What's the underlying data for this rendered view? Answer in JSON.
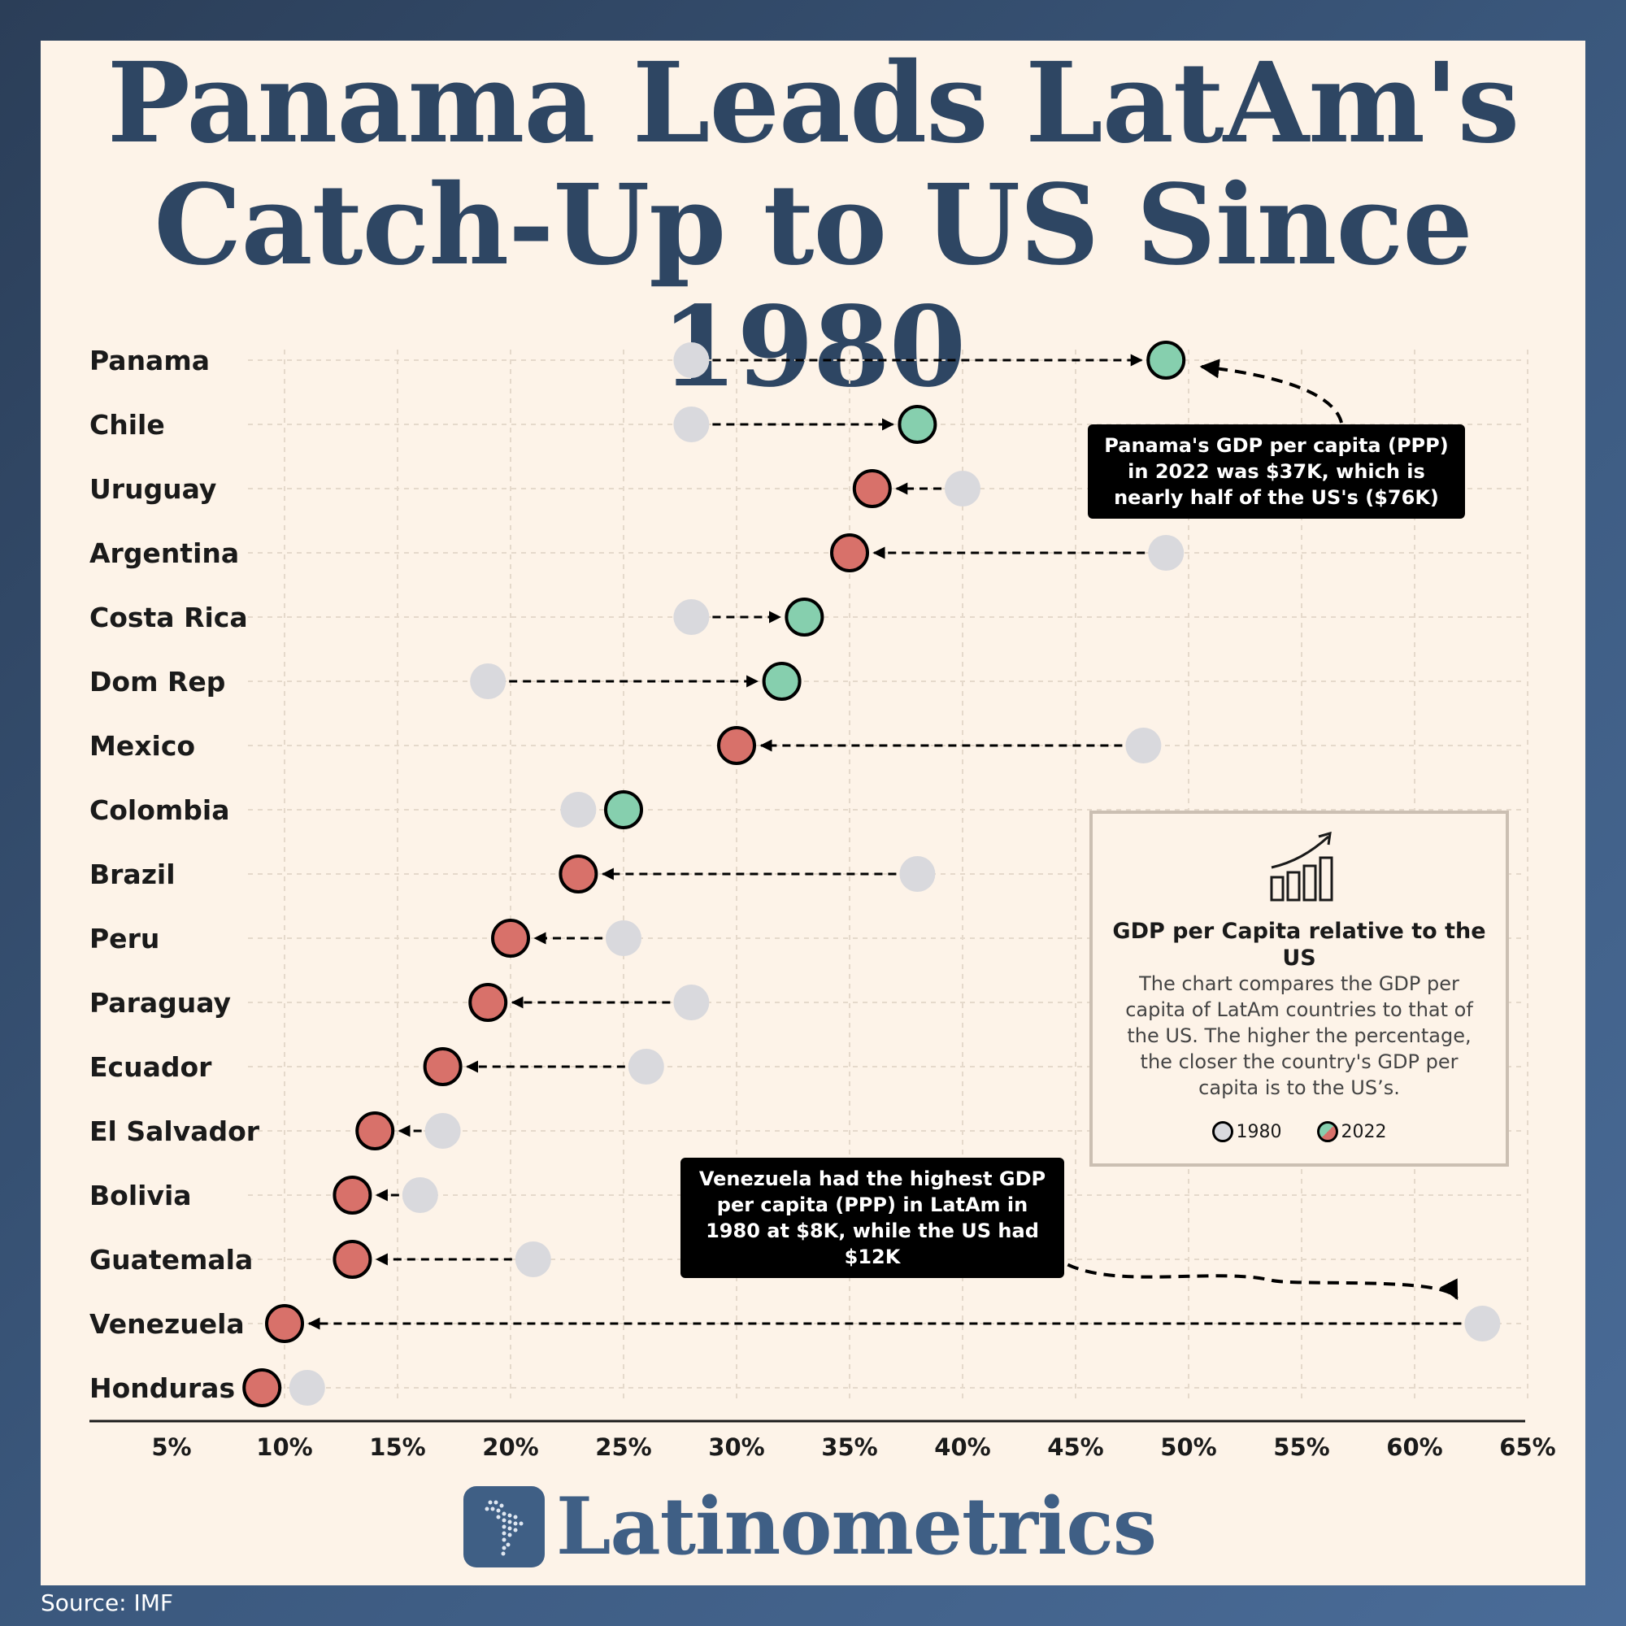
{
  "title": {
    "line1": "Panama Leads LatAm's",
    "line2": "Catch-Up to US Since 1980"
  },
  "colors": {
    "grey_1980": "#d9d9dd",
    "gain": "#86cfae",
    "loss": "#d8716a",
    "title": "#2e4663",
    "brand": "#3f5f85"
  },
  "chart_data": {
    "type": "dumbbell",
    "x_ticks": [
      "5%",
      "10%",
      "15%",
      "20%",
      "25%",
      "30%",
      "35%",
      "40%",
      "45%",
      "50%",
      "55%",
      "60%",
      "65%"
    ],
    "xlim": [
      1.5,
      65
    ],
    "series_names": [
      "1980",
      "2022"
    ],
    "countries": [
      {
        "name": "Panama",
        "v1980": 28,
        "v2022": 49
      },
      {
        "name": "Chile",
        "v1980": 28,
        "v2022": 38
      },
      {
        "name": "Uruguay",
        "v1980": 40,
        "v2022": 36
      },
      {
        "name": "Argentina",
        "v1980": 49,
        "v2022": 35
      },
      {
        "name": "Costa Rica",
        "v1980": 28,
        "v2022": 33
      },
      {
        "name": "Dom Rep",
        "v1980": 19,
        "v2022": 32
      },
      {
        "name": "Mexico",
        "v1980": 48,
        "v2022": 30
      },
      {
        "name": "Colombia",
        "v1980": 23,
        "v2022": 25
      },
      {
        "name": "Brazil",
        "v1980": 38,
        "v2022": 23
      },
      {
        "name": "Peru",
        "v1980": 25,
        "v2022": 20
      },
      {
        "name": "Paraguay",
        "v1980": 28,
        "v2022": 19
      },
      {
        "name": "Ecuador",
        "v1980": 26,
        "v2022": 17
      },
      {
        "name": "El Salvador",
        "v1980": 17,
        "v2022": 14
      },
      {
        "name": "Bolivia",
        "v1980": 16,
        "v2022": 13
      },
      {
        "name": "Guatemala",
        "v1980": 21,
        "v2022": 13
      },
      {
        "name": "Venezuela",
        "v1980": 63,
        "v2022": 10
      },
      {
        "name": "Honduras",
        "v1980": 11,
        "v2022": 9
      }
    ]
  },
  "annotations": {
    "panama": "Panama's GDP per capita (PPP) in 2022 was $37K, which is nearly half of the US's ($76K)",
    "venezuela": "Venezuela had the highest GDP per capita (PPP) in LatAm in 1980 at $8K, while the US had $12K"
  },
  "legend": {
    "title": "GDP per Capita relative to the US",
    "description": "The chart compares the GDP per capita of LatAm countries to that of the US. The higher the percentage, the closer the country's GDP per capita is to the US’s.",
    "key_1980": "1980",
    "key_2022": "2022",
    "icon": "chart-growth-icon"
  },
  "brand": {
    "name": "Latinometrics",
    "icon": "latam-map-icon"
  },
  "source": "Source: IMF"
}
